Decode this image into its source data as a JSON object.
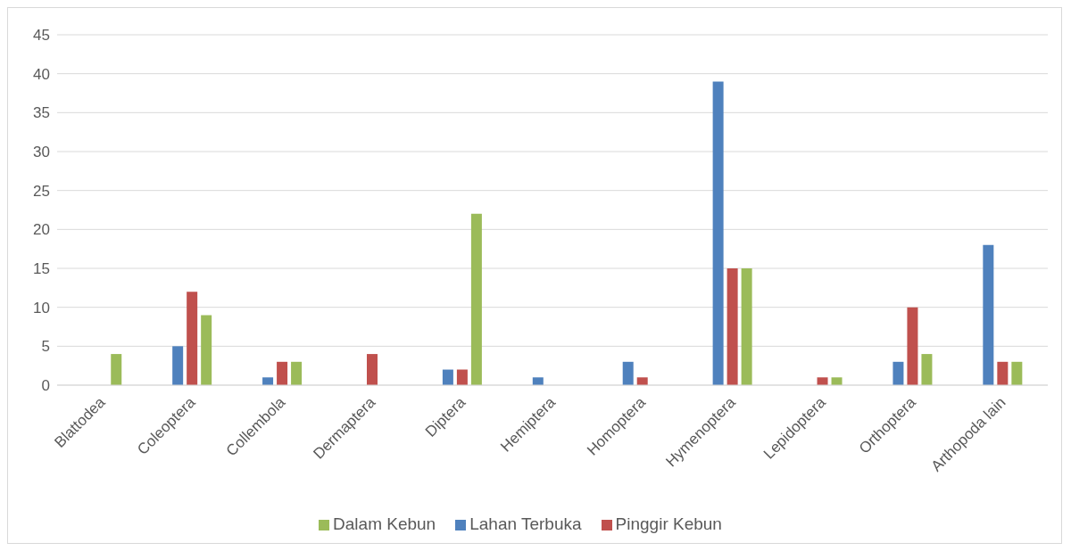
{
  "chart_data": {
    "type": "bar",
    "categories": [
      "Blattodea",
      "Coleoptera",
      "Collembola",
      "Dermaptera",
      "Diptera",
      "Hemiptera",
      "Homoptera",
      "Hymenoptera",
      "Lepidoptera",
      "Orthoptera",
      "Arthopoda lain"
    ],
    "series": [
      {
        "name": "Lahan Terbuka",
        "color": "#4f81bd",
        "values": [
          0,
          5,
          1,
          0,
          2,
          1,
          3,
          39,
          0,
          3,
          18
        ]
      },
      {
        "name": "Pinggir Kebun",
        "color": "#c0504d",
        "values": [
          0,
          12,
          3,
          4,
          2,
          0,
          1,
          15,
          1,
          10,
          3
        ]
      },
      {
        "name": "Dalam Kebun",
        "color": "#9bbb59",
        "values": [
          4,
          9,
          3,
          0,
          22,
          0,
          0,
          15,
          1,
          4,
          3
        ]
      }
    ],
    "ylim": [
      0,
      45
    ],
    "yticks": [
      0,
      5,
      10,
      15,
      20,
      25,
      30,
      35,
      40,
      45
    ],
    "grid": "y",
    "legend": "bottom"
  }
}
